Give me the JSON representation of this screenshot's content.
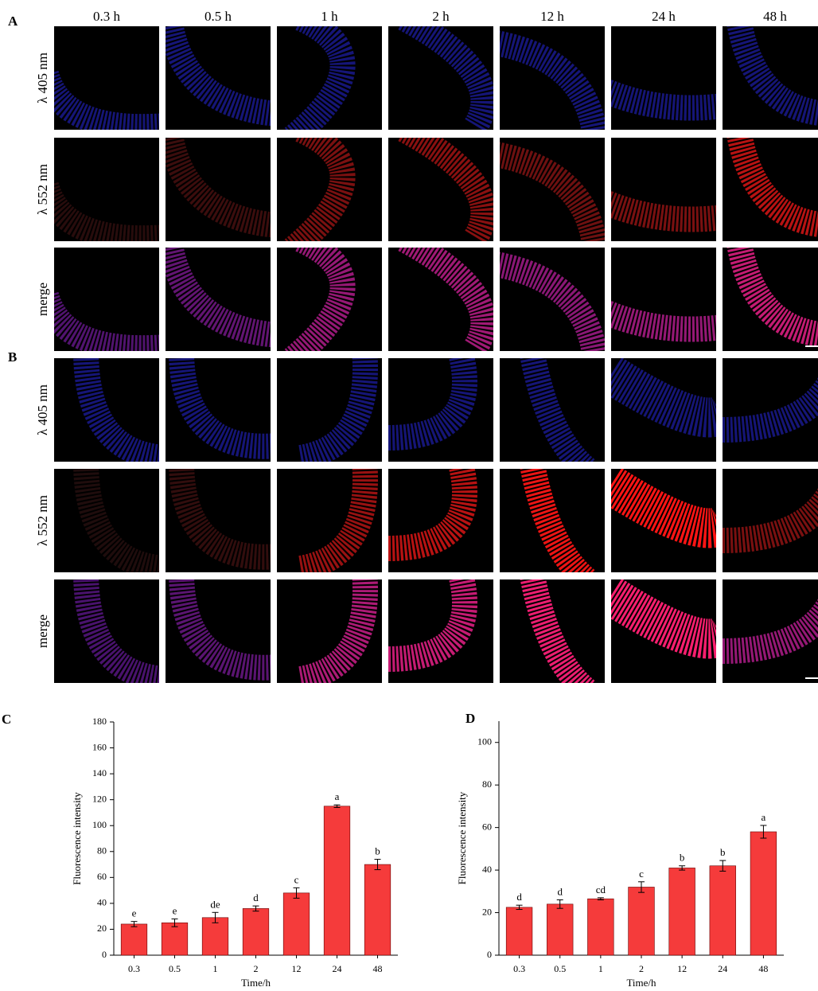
{
  "figure": {
    "panels": [
      "A",
      "B"
    ],
    "columns": [
      "0.3 h",
      "0.5 h",
      "1 h",
      "2 h",
      "12 h",
      "24 h",
      "48 h"
    ],
    "rows": [
      "λ 405 nm",
      "λ 552 nm",
      "merge"
    ]
  },
  "chart_data": [
    {
      "type": "bar",
      "panel": "C",
      "y_label": "Fluorescence intensity",
      "x_label": "Time/h",
      "categories": [
        "0.3",
        "0.5",
        "1",
        "2",
        "12",
        "24",
        "48"
      ],
      "values": [
        24,
        25,
        29,
        36,
        48,
        115,
        70
      ],
      "errors": [
        2,
        3,
        4,
        2,
        4,
        1,
        4
      ],
      "annotations": [
        "e",
        "e",
        "de",
        "d",
        "c",
        "a",
        "b"
      ],
      "color": "#f53b3b",
      "ylim": [
        0,
        180
      ],
      "yticks": [
        0,
        20,
        40,
        60,
        80,
        100,
        120,
        140,
        160,
        180
      ]
    },
    {
      "type": "bar",
      "panel": "D",
      "y_label": "Fluorescence intensity",
      "x_label": "Time/h",
      "categories": [
        "0.3",
        "0.5",
        "1",
        "2",
        "12",
        "24",
        "48"
      ],
      "values": [
        22.5,
        24,
        26.5,
        32,
        41,
        42,
        58
      ],
      "errors": [
        1,
        2,
        0.5,
        2.5,
        1,
        2.5,
        3
      ],
      "annotations": [
        "d",
        "d",
        "cd",
        "c",
        "b",
        "b",
        "a"
      ],
      "color": "#f53b3b",
      "ylim": [
        0,
        110
      ],
      "yticks": [
        0,
        20,
        40,
        60,
        80,
        100
      ]
    }
  ]
}
